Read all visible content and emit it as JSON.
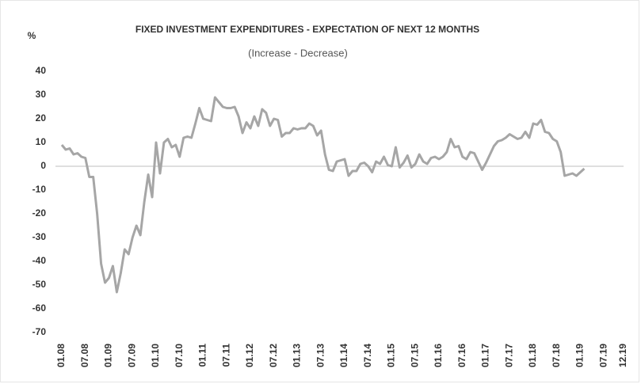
{
  "chart_data": {
    "type": "line",
    "title": "FIXED INVESTMENT EXPENDITURES - EXPECTATION OF NEXT 12 MONTHS",
    "subtitle": "(Increase - Decrease)",
    "y_label": "%",
    "categories": [
      "01.08",
      null,
      null,
      null,
      null,
      null,
      "07.08",
      null,
      null,
      null,
      null,
      null,
      "01.09",
      null,
      null,
      null,
      null,
      null,
      "07.09",
      null,
      null,
      null,
      null,
      null,
      "01.10",
      null,
      null,
      null,
      null,
      null,
      "07.10",
      null,
      null,
      null,
      null,
      null,
      "01.11",
      null,
      null,
      null,
      null,
      null,
      "07.11",
      null,
      null,
      null,
      null,
      null,
      "01.12",
      null,
      null,
      null,
      null,
      null,
      "07.12",
      null,
      null,
      null,
      null,
      null,
      "01.13",
      null,
      null,
      null,
      null,
      null,
      "07.13",
      null,
      null,
      null,
      null,
      null,
      "01.14",
      null,
      null,
      null,
      null,
      null,
      "07.14",
      null,
      null,
      null,
      null,
      null,
      "01.15",
      null,
      null,
      null,
      null,
      null,
      "07.15",
      null,
      null,
      null,
      null,
      null,
      "01.16",
      null,
      null,
      null,
      null,
      null,
      "07.16",
      null,
      null,
      null,
      null,
      null,
      "01.17",
      null,
      null,
      null,
      null,
      null,
      "07.17",
      null,
      null,
      null,
      null,
      null,
      "01.18",
      null,
      null,
      null,
      null,
      null,
      "07.18",
      null,
      null,
      null,
      null,
      null,
      "01.19",
      null,
      null,
      null,
      null,
      null,
      "07.19",
      null,
      null,
      null,
      null,
      "12.19"
    ],
    "values": [
      9,
      7,
      7.5,
      5,
      5.5,
      4,
      3.5,
      -4.5,
      -4.5,
      -20,
      -41,
      -49,
      -47,
      -42,
      -53,
      -45,
      -35,
      -37,
      -30,
      -25,
      -29,
      -15,
      -3.5,
      -13,
      10,
      -3,
      10,
      11.5,
      8,
      9,
      4,
      12,
      12.5,
      12,
      18,
      24.5,
      20,
      19.5,
      19,
      29,
      27,
      25,
      24.5,
      24.5,
      25,
      21,
      14,
      18.5,
      16,
      21,
      17,
      24,
      22.5,
      17,
      20,
      19.5,
      12.5,
      14,
      14,
      16,
      15.5,
      16,
      16,
      18,
      17,
      13,
      15,
      5,
      -1.5,
      -2,
      2,
      2.5,
      3,
      -4,
      -2,
      -2,
      1,
      1.5,
      0,
      -2.5,
      2,
      1,
      4,
      0.5,
      0,
      8,
      -0.5,
      1.5,
      4.5,
      -0.5,
      1,
      5,
      2,
      1,
      3.5,
      4,
      3,
      4,
      6,
      11.5,
      8,
      8.5,
      4,
      3,
      6,
      5.5,
      2,
      -1.5,
      1.5,
      5,
      8.5,
      10.5,
      11,
      12,
      13.5,
      12.5,
      11.5,
      12,
      14.5,
      12,
      18,
      17.5,
      19.5,
      14.5,
      14,
      11.5,
      10.5,
      6,
      -4,
      -3.5,
      -3,
      -4,
      -2.5,
      -1,
      null,
      null,
      null,
      null,
      null,
      null,
      null,
      null,
      null,
      null
    ],
    "color": "#a6a6a6",
    "ylim": [
      -70,
      40
    ],
    "yticks": [
      -70,
      -60,
      -50,
      -40,
      -30,
      -20,
      -10,
      0,
      10,
      20,
      30,
      40
    ],
    "grid": false
  }
}
